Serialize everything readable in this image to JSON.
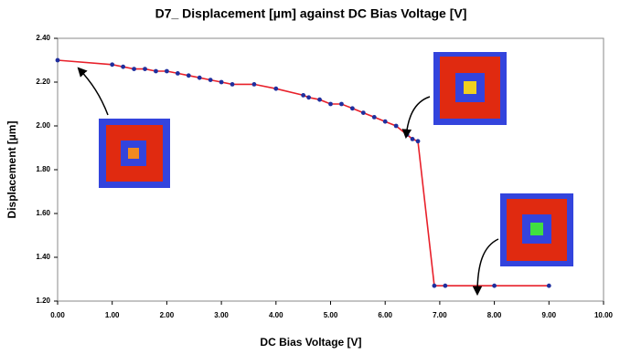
{
  "chart_data": {
    "type": "line",
    "title": "D7_ Displacement [µm] against DC Bias Voltage [V]",
    "x_label": "DC Bias Voltage [V]",
    "y_label": "Displacement [µm]",
    "x": [
      0,
      1.0,
      1.2,
      1.4,
      1.6,
      1.8,
      2.0,
      2.2,
      2.4,
      2.6,
      2.8,
      3.0,
      3.2,
      3.6,
      4.0,
      4.5,
      4.6,
      4.8,
      5.0,
      5.2,
      5.4,
      5.6,
      5.8,
      6.0,
      6.2,
      6.4,
      6.5,
      6.6,
      6.9,
      7.1,
      8.0,
      9.0
    ],
    "series": [
      {
        "color": "#e8202a",
        "marker_color": "#1f2f9e",
        "values": [
          2.3,
          2.28,
          2.27,
          2.26,
          2.26,
          2.25,
          2.25,
          2.24,
          2.23,
          2.22,
          2.21,
          2.2,
          2.19,
          2.19,
          2.17,
          2.14,
          2.13,
          2.12,
          2.1,
          2.1,
          2.08,
          2.06,
          2.04,
          2.02,
          2.0,
          1.96,
          1.94,
          1.93,
          1.27,
          1.27,
          1.27,
          1.27
        ]
      }
    ],
    "xlim": [
      0,
      10
    ],
    "xticks": [
      {
        "value": 0,
        "label": "0.00"
      },
      {
        "value": 1,
        "label": "1.00"
      },
      {
        "value": 2,
        "label": "2.00"
      },
      {
        "value": 3,
        "label": "3.00"
      },
      {
        "value": 4,
        "label": "4.00"
      },
      {
        "value": 5,
        "label": "5.00"
      },
      {
        "value": 6,
        "label": "6.00"
      },
      {
        "value": 7,
        "label": "7.00"
      },
      {
        "value": 8,
        "label": "8.00"
      },
      {
        "value": 9,
        "label": "9.00"
      },
      {
        "value": 10,
        "label": "10.00"
      }
    ],
    "ylim": [
      1.2,
      2.4
    ],
    "yticks": [
      {
        "value": 1.2,
        "label": "1.20"
      },
      {
        "value": 1.4,
        "label": "1.40"
      },
      {
        "value": 1.6,
        "label": "1.60"
      },
      {
        "value": 1.8,
        "label": "1.80"
      },
      {
        "value": 2.0,
        "label": "2.00"
      },
      {
        "value": 2.2,
        "label": "2.20"
      },
      {
        "value": 2.4,
        "label": "2.40"
      }
    ]
  }
}
